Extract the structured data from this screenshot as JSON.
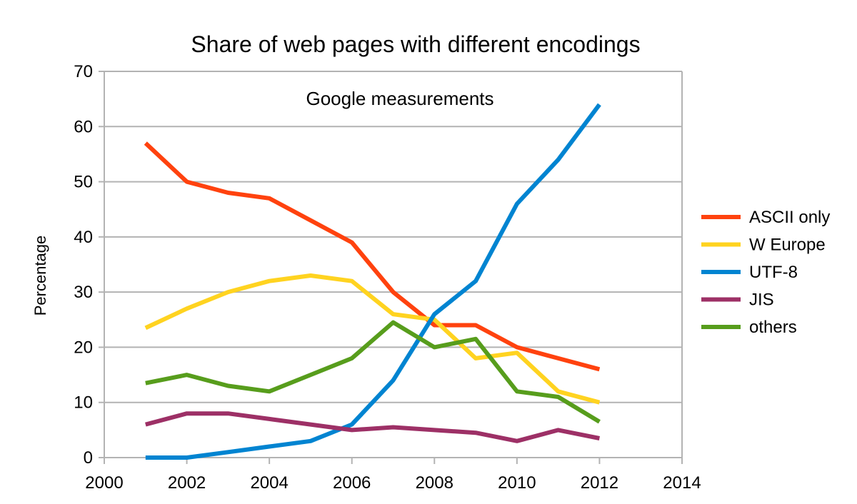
{
  "chart_data": {
    "type": "line",
    "title": "Share of web pages with different encodings",
    "subtitle": "Google measurements",
    "xlabel": "",
    "ylabel": "Percentage",
    "xlim": [
      2000,
      2014
    ],
    "ylim": [
      0,
      70
    ],
    "x_ticks": [
      2000,
      2002,
      2004,
      2006,
      2008,
      2010,
      2012,
      2014
    ],
    "y_ticks": [
      0,
      10,
      20,
      30,
      40,
      50,
      60,
      70
    ],
    "grid": true,
    "legend_position": "right",
    "x": [
      2001,
      2002,
      2003,
      2004,
      2005,
      2006,
      2007,
      2008,
      2009,
      2010,
      2011,
      2012
    ],
    "series": [
      {
        "name": "ASCII only",
        "color": "#ff420e",
        "values": [
          57,
          50,
          48,
          47,
          43,
          39,
          30,
          24,
          24,
          20,
          18,
          16
        ]
      },
      {
        "name": "W Europe",
        "color": "#ffd320",
        "values": [
          23.5,
          27,
          30,
          32,
          33,
          32,
          26,
          25,
          18,
          19,
          12,
          10
        ]
      },
      {
        "name": "UTF-8",
        "color": "#0084d1",
        "values": [
          0,
          0,
          1,
          2,
          3,
          6,
          14,
          26,
          32,
          46,
          54,
          64
        ]
      },
      {
        "name": "JIS",
        "color": "#9d3066",
        "values": [
          6,
          8,
          8,
          7,
          6,
          5,
          5.5,
          5,
          4.5,
          3,
          5,
          3.5
        ]
      },
      {
        "name": "others",
        "color": "#579d1c",
        "values": [
          13.5,
          15,
          13,
          12,
          15,
          18,
          24.5,
          20,
          21.5,
          12,
          11,
          6.5
        ]
      }
    ]
  }
}
